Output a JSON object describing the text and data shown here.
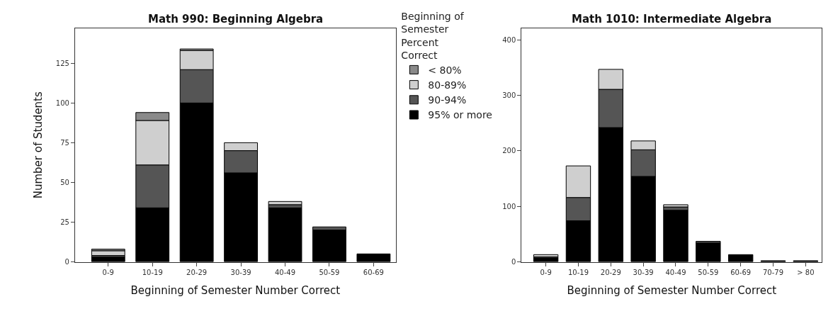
{
  "chart_data": [
    {
      "type": "bar",
      "title": "Math 990: Beginning Algebra",
      "xlabel": "Beginning of Semester Number Correct",
      "ylabel": "Number of Students",
      "legend_title": "Beginning of Semester Percent Correct",
      "legend": "right",
      "stacked": true,
      "categories": [
        "0-9",
        "10-19",
        "20-29",
        "30-39",
        "40-49",
        "50-59",
        "60-69"
      ],
      "ylim": [
        0,
        147
      ],
      "yticks": [
        0,
        25,
        50,
        75,
        100,
        125
      ],
      "series": [
        {
          "name": "95% or more",
          "color": "#000000",
          "values": [
            3,
            34,
            100,
            56,
            34,
            20,
            5
          ]
        },
        {
          "name": "90-94%",
          "color": "#555555",
          "values": [
            1,
            27,
            21,
            14,
            2,
            2,
            null
          ]
        },
        {
          "name": "80-89%",
          "color": "#cfcfcf",
          "values": [
            3,
            28,
            12,
            5,
            2,
            null,
            null
          ]
        },
        {
          "name": "< 80%",
          "color": "#8a8a8a",
          "values": [
            1,
            5,
            1,
            null,
            null,
            null,
            null
          ]
        }
      ]
    },
    {
      "type": "bar",
      "title": "Math 1010: Intermediate Algebra",
      "xlabel": "Beginning of Semester Number Correct",
      "stacked": true,
      "categories": [
        "0-9",
        "10-19",
        "20-29",
        "30-39",
        "40-49",
        "50-59",
        "60-69",
        "70-79",
        "> 80"
      ],
      "ylim": [
        0,
        421
      ],
      "yticks": [
        0,
        100,
        200,
        300,
        400
      ],
      "series": [
        {
          "color": "#000000",
          "values": [
            7,
            74,
            242,
            154,
            93,
            34,
            13,
            2,
            2
          ]
        },
        {
          "color": "#555555",
          "values": [
            2,
            42,
            69,
            48,
            6,
            3,
            null,
            null,
            null
          ]
        },
        {
          "color": "#cfcfcf",
          "values": [
            4,
            57,
            36,
            16,
            4,
            null,
            null,
            null,
            null
          ]
        }
      ]
    }
  ]
}
